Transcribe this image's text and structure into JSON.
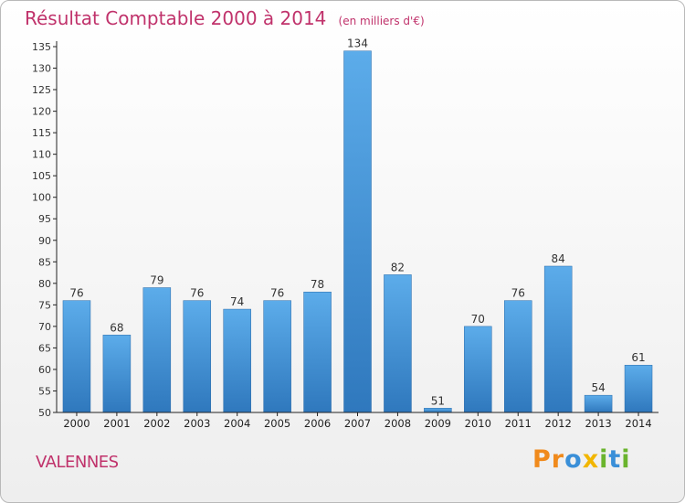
{
  "chart_data": {
    "type": "bar",
    "title": "Résultat Comptable 2000 à 2014",
    "subtitle": "(en milliers d'€)",
    "categories": [
      "2000",
      "2001",
      "2002",
      "2003",
      "2004",
      "2005",
      "2006",
      "2007",
      "2008",
      "2009",
      "2010",
      "2011",
      "2012",
      "2013",
      "2014"
    ],
    "values": [
      76,
      68,
      79,
      76,
      74,
      76,
      78,
      134,
      82,
      51,
      70,
      76,
      84,
      54,
      61
    ],
    "data_labels": [
      "76",
      "68",
      "79",
      "76",
      "74",
      "76",
      "78",
      "134",
      "82",
      "51",
      "70",
      "76",
      "84",
      "54",
      "61"
    ],
    "ylim": [
      50,
      135
    ],
    "yticks": [
      50,
      55,
      60,
      65,
      70,
      75,
      80,
      85,
      90,
      95,
      100,
      105,
      110,
      115,
      120,
      125,
      130,
      135
    ],
    "xlabel": "",
    "ylabel": "",
    "grid": false,
    "bar_color": "#3d8fd6"
  },
  "commune": "VALENNES",
  "brand": {
    "letters": [
      "P",
      "r",
      "o",
      "x",
      "i",
      "t",
      "i"
    ],
    "colors": [
      "#f08a1c",
      "#f08a1c",
      "#3a8fd8",
      "#f2b600",
      "#6ab42d",
      "#3a8fd8",
      "#6ab42d"
    ]
  }
}
